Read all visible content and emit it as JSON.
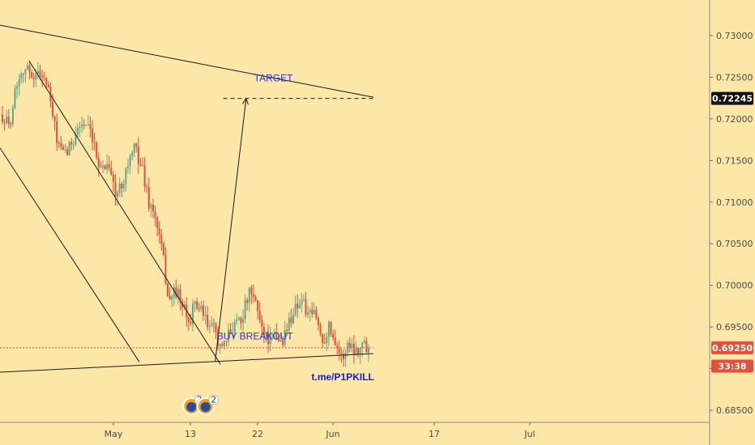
{
  "chart_data": {
    "type": "candlestick",
    "x_axis": {
      "tick_labels": [
        "May",
        "13",
        "22",
        "Jun",
        "17",
        "Jul"
      ]
    },
    "y_axis": {
      "range": [
        0.6835,
        0.7345
      ],
      "tick_values": [
        0.73,
        0.725,
        0.72,
        0.715,
        0.71,
        0.705,
        0.7,
        0.695,
        0.69,
        0.685
      ],
      "tick_labels": [
        "0.73000",
        "0.72500",
        "0.72000",
        "0.71500",
        "0.71000",
        "0.70500",
        "0.70000",
        "0.69500",
        "0.69000",
        "0.68500"
      ],
      "partial_tick_label": "0"
    },
    "price_tags": [
      {
        "label": "0.72245",
        "value": 0.72245,
        "bg": "#111111",
        "fg": "#ffffff"
      },
      {
        "label": "0.69250",
        "value": 0.6925,
        "bg": "#e0503a",
        "fg": "#ffffff"
      },
      {
        "label": "33:38",
        "value": 0.6903,
        "bg": "#e0503a",
        "fg": "#ffffff"
      }
    ],
    "candles": {
      "count": 176,
      "day_range": [
        0,
        37
      ],
      "anchors": [
        [
          0,
          0.7205
        ],
        [
          1,
          0.719
        ],
        [
          2,
          0.724
        ],
        [
          3,
          0.7262
        ],
        [
          5,
          0.7252
        ],
        [
          6,
          0.7256
        ],
        [
          7,
          0.723
        ],
        [
          8,
          0.7182
        ],
        [
          9,
          0.7155
        ],
        [
          10,
          0.7163
        ],
        [
          11,
          0.7185
        ],
        [
          12,
          0.7195
        ],
        [
          13,
          0.7185
        ],
        [
          14,
          0.7158
        ],
        [
          15,
          0.714
        ],
        [
          16,
          0.715
        ],
        [
          17,
          0.7105
        ],
        [
          18,
          0.7125
        ],
        [
          19,
          0.715
        ],
        [
          20,
          0.7165
        ],
        [
          21,
          0.714
        ],
        [
          22,
          0.71
        ],
        [
          23,
          0.708
        ],
        [
          24,
          0.704
        ],
        [
          25,
          0.698
        ],
        [
          26,
          0.6995
        ],
        [
          27,
          0.6975
        ],
        [
          28,
          0.6955
        ],
        [
          29,
          0.698
        ],
        [
          30,
          0.6965
        ],
        [
          31,
          0.695
        ],
        [
          32,
          0.6945
        ],
        [
          33,
          0.692
        ],
        [
          34,
          0.694
        ],
        [
          35,
          0.696
        ],
        [
          36,
          0.6962
        ],
        [
          37,
          0.699
        ],
        [
          38,
          0.698
        ],
        [
          39,
          0.695
        ],
        [
          40,
          0.6935
        ],
        [
          41,
          0.6938
        ],
        [
          42,
          0.6932
        ],
        [
          43,
          0.6955
        ],
        [
          44,
          0.6975
        ],
        [
          45,
          0.6983
        ],
        [
          46,
          0.696
        ],
        [
          47,
          0.6968
        ],
        [
          48,
          0.6932
        ],
        [
          49,
          0.695
        ],
        [
          50,
          0.6935
        ],
        [
          51,
          0.691
        ],
        [
          52,
          0.6932
        ],
        [
          53,
          0.6922
        ],
        [
          54,
          0.693
        ],
        [
          55,
          0.6925
        ]
      ],
      "anchor_x_units": "candle index / 176 * 37 days",
      "up_color": "#5fa88e",
      "down_color": "#e0503a"
    },
    "trendlines": [
      {
        "name": "upper-wedge-line",
        "from": [
          -1.5,
          0.7315
        ],
        "to": [
          42,
          0.7226
        ]
      },
      {
        "name": "lower-wedge-line",
        "from": [
          -1.5,
          0.6895
        ],
        "to": [
          42,
          0.6918
        ]
      },
      {
        "name": "channel-upper-line",
        "from": [
          3,
          0.727
        ],
        "to": [
          24.7,
          0.6905
        ]
      },
      {
        "name": "channel-lower-line",
        "from": [
          -1.5,
          0.7185
        ],
        "to": [
          15.5,
          0.6908
        ]
      },
      {
        "name": "breakout-arrow-up",
        "from": [
          24.1,
          0.6909
        ],
        "to": [
          27.6,
          0.72245
        ],
        "arrow": true
      },
      {
        "name": "target-level-line",
        "from": [
          25,
          0.72245
        ],
        "to": [
          42,
          0.72245
        ],
        "dashed": true
      },
      {
        "name": "current-price-line",
        "from": [
          -1.5,
          0.6925
        ],
        "to": [
          42,
          0.6925
        ],
        "dotted": true,
        "color": "#e0503a"
      }
    ],
    "annotations": [
      {
        "name": "target-label",
        "text": "TARGET",
        "x": 28.5,
        "y": 0.7245,
        "color": "#2b2bdf"
      },
      {
        "name": "buy-breakout-label",
        "text": "BUY BREAKOUT",
        "x": 24.3,
        "y": 0.6935,
        "color": "#2b2bdf"
      },
      {
        "name": "telegram-link",
        "text": "t.me/P1PKILL",
        "x": 35,
        "y": 0.6886,
        "color": "#1a1acc",
        "bold": true
      }
    ],
    "event_badges": [
      {
        "name": "event-badge-1",
        "count": "2",
        "x": 21.4
      },
      {
        "name": "event-badge-2",
        "count": "2",
        "x": 23.0
      }
    ]
  }
}
